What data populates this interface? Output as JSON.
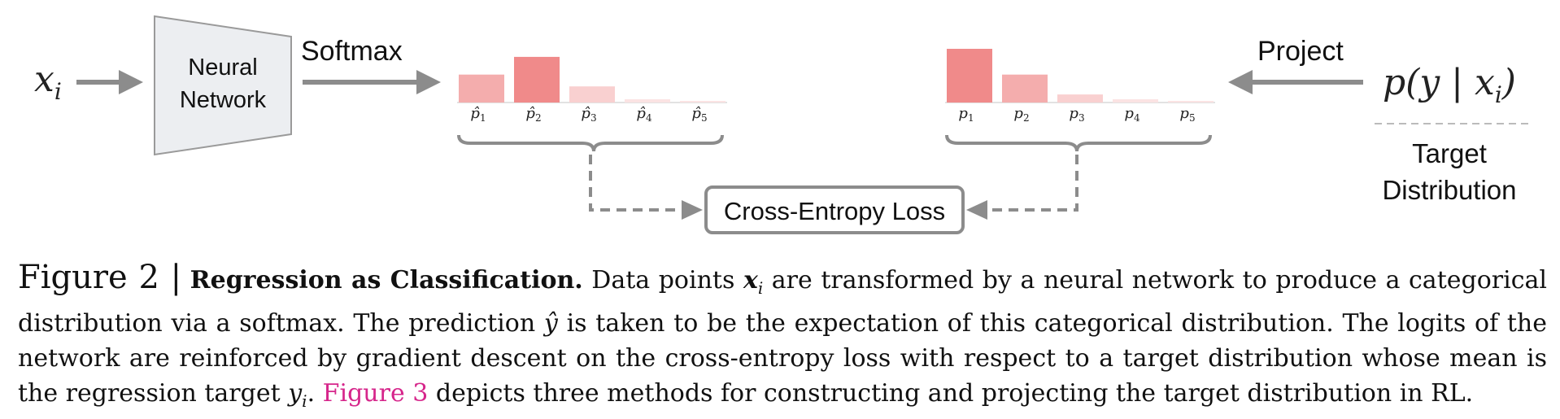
{
  "diagram": {
    "input_var": "x",
    "input_sub": "i",
    "network_line1": "Neural",
    "network_line2": "Network",
    "softmax_label": "Softmax",
    "project_label": "Project",
    "target_formula": "p(y | x",
    "target_formula_sub": "i",
    "target_formula_close": ")",
    "target_label_line1": "Target",
    "target_label_line2": "Distribution",
    "loss_label": "Cross-Entropy Loss",
    "pred_bars": [
      {
        "label": "p̂",
        "sub": "1",
        "value": 0.52
      },
      {
        "label": "p̂",
        "sub": "2",
        "value": 0.85
      },
      {
        "label": "p̂",
        "sub": "3",
        "value": 0.3
      },
      {
        "label": "p̂",
        "sub": "4",
        "value": 0.06
      },
      {
        "label": "p̂",
        "sub": "5",
        "value": 0.02
      }
    ],
    "target_bars": [
      {
        "label": "p",
        "sub": "1",
        "value": 1.0
      },
      {
        "label": "p",
        "sub": "2",
        "value": 0.52
      },
      {
        "label": "p",
        "sub": "3",
        "value": 0.15
      },
      {
        "label": "p",
        "sub": "4",
        "value": 0.06
      },
      {
        "label": "p",
        "sub": "5",
        "value": 0.02
      }
    ],
    "colors": {
      "arrow": "#8c8c8c",
      "bar_dark": "#f08a8a",
      "bar_mid": "#f4adad",
      "bar_light": "#f9d0d0",
      "bar_faint": "#fbe3e3",
      "box_fill": "#eceef1",
      "box_stroke": "#9a9a9a"
    }
  },
  "caption": {
    "figure_label": "Figure 2 |",
    "title": "Regression as Classification.",
    "text1": "Data points",
    "math_x": "x",
    "math_x_sub": "i",
    "text2": "are transformed by a neural network to produce a categorical distribution via a softmax. The prediction",
    "math_yhat": "ŷ",
    "text3": "is taken to be the expectation of this categorical distribution. The logits of the network are reinforced by gradient descent on the cross-entropy loss with respect to a target distribution whose mean is the regression target",
    "math_y": "y",
    "math_y_sub": "i",
    "text4": ".",
    "ref": "Figure 3",
    "text5": "depicts three methods for constructing and projecting the target distribution in RL."
  }
}
